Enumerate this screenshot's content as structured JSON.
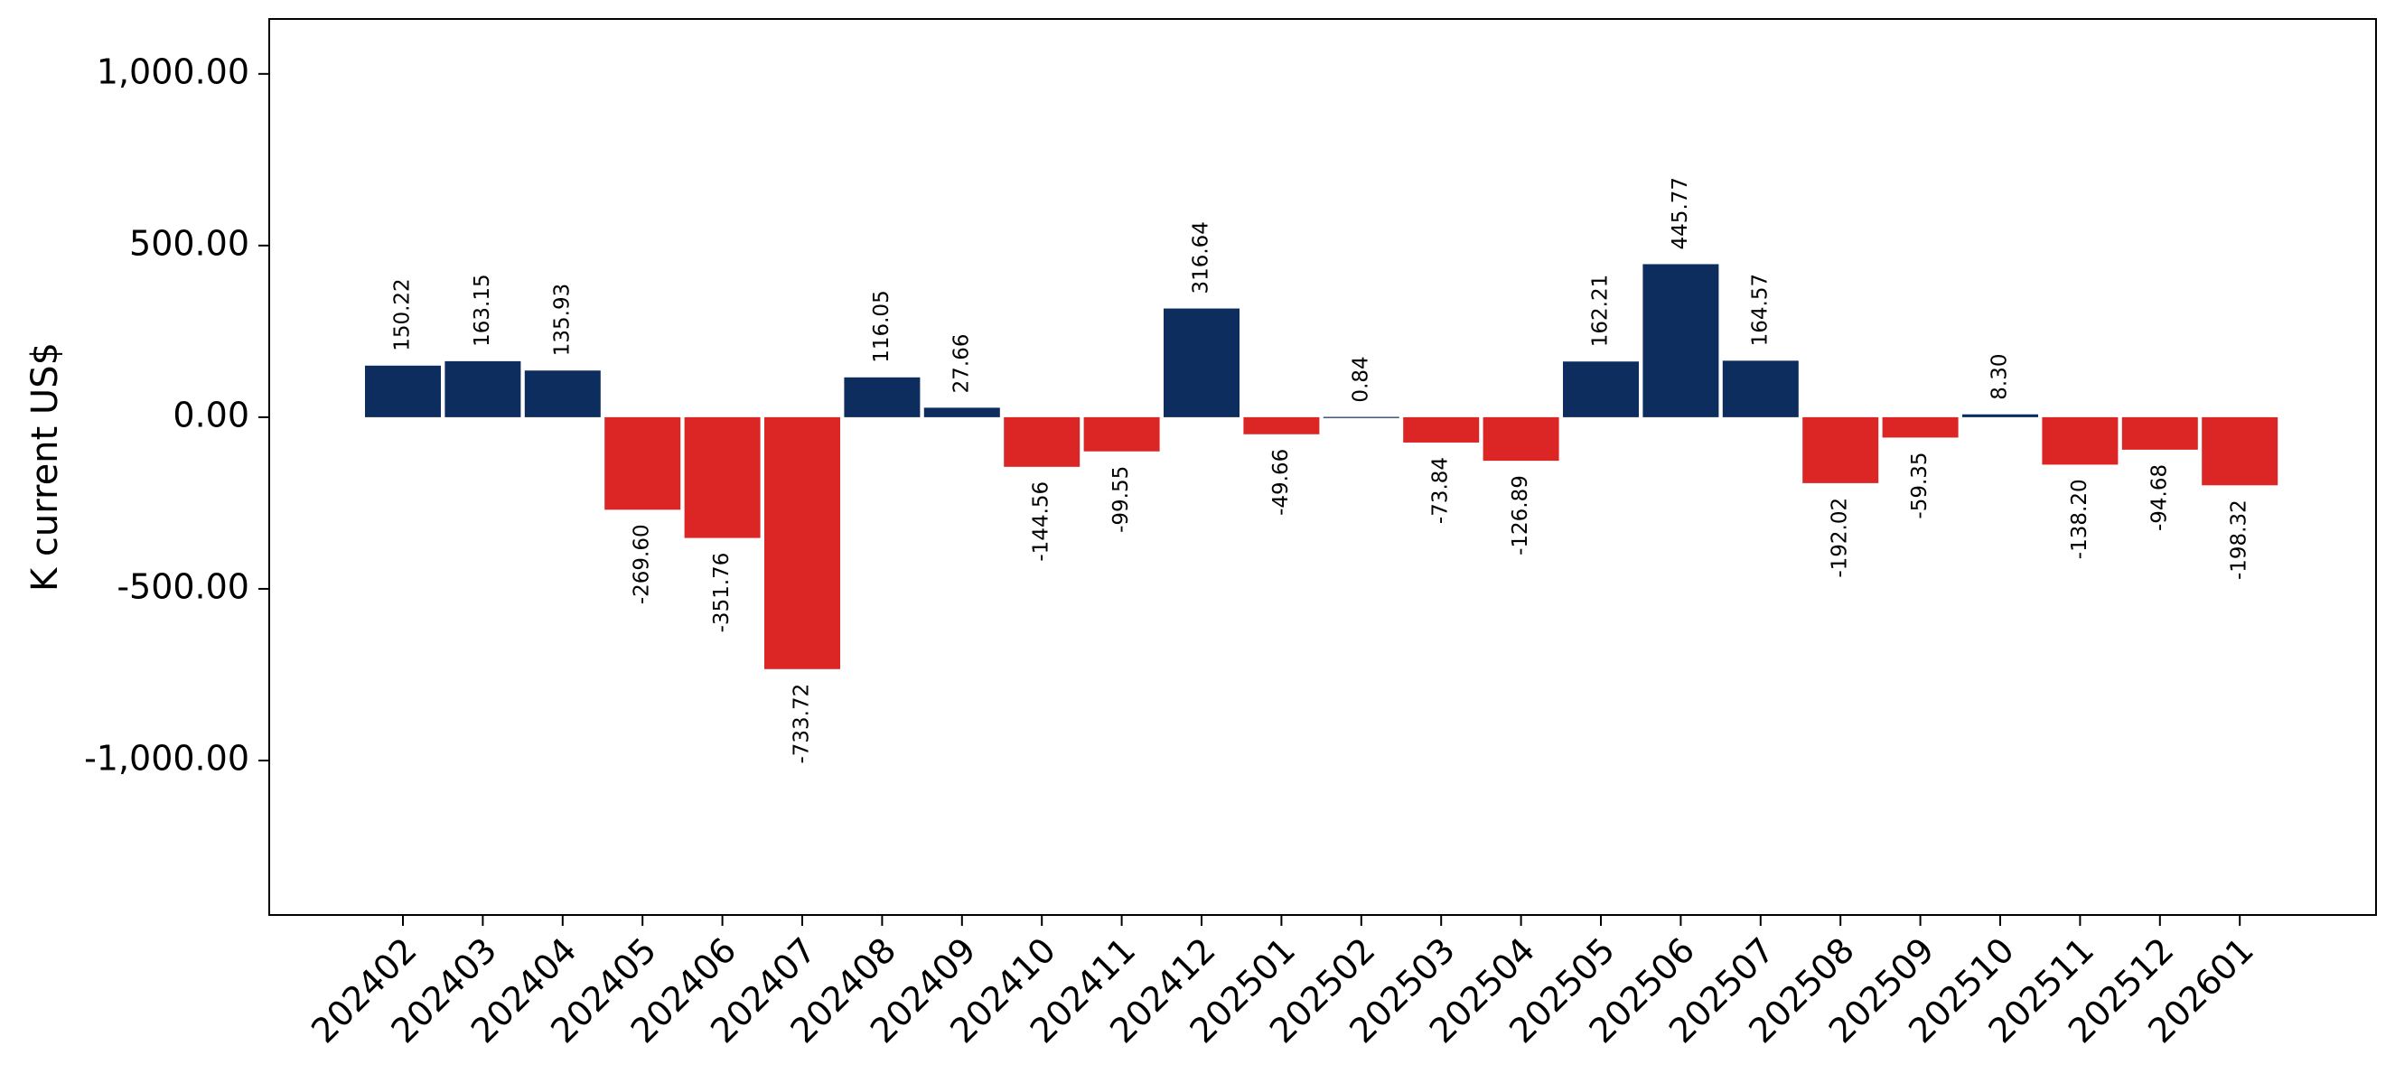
{
  "chart_data": {
    "type": "bar",
    "title": "",
    "xlabel": "",
    "ylabel": "K current US$",
    "ylim": [
      -1450,
      1160
    ],
    "yticks": [
      -1000,
      -500,
      0,
      500,
      1000
    ],
    "ytick_labels": [
      "-1,000.00",
      "-500.00",
      "0.00",
      "500.00",
      "1,000.00"
    ],
    "grid": false,
    "legend": "none",
    "colors": {
      "positive": "#0d2d5e",
      "negative": "#dc2626"
    },
    "categories": [
      "202402",
      "202403",
      "202404",
      "202405",
      "202406",
      "202407",
      "202408",
      "202409",
      "202410",
      "202411",
      "202412",
      "202501",
      "202502",
      "202503",
      "202504",
      "202505",
      "202506",
      "202507",
      "202508",
      "202509",
      "202510",
      "202511",
      "202512",
      "202601"
    ],
    "values": [
      150.22,
      163.15,
      135.93,
      -269.6,
      -351.76,
      -733.72,
      116.05,
      27.66,
      -144.56,
      -99.55,
      316.64,
      -49.66,
      0.84,
      -73.84,
      -126.89,
      162.21,
      445.77,
      164.57,
      -192.02,
      -59.35,
      8.3,
      -138.2,
      -94.68,
      -198.32
    ],
    "value_labels": [
      "150.22",
      "163.15",
      "135.93",
      "-269.60",
      "-351.76",
      "-733.72",
      "116.05",
      "27.66",
      "-144.56",
      "-99.55",
      "316.64",
      "-49.66",
      "0.84",
      "-73.84",
      "-126.89",
      "162.21",
      "445.77",
      "164.57",
      "-192.02",
      "-59.35",
      "8.30",
      "-138.20",
      "-94.68",
      "-198.32"
    ]
  }
}
